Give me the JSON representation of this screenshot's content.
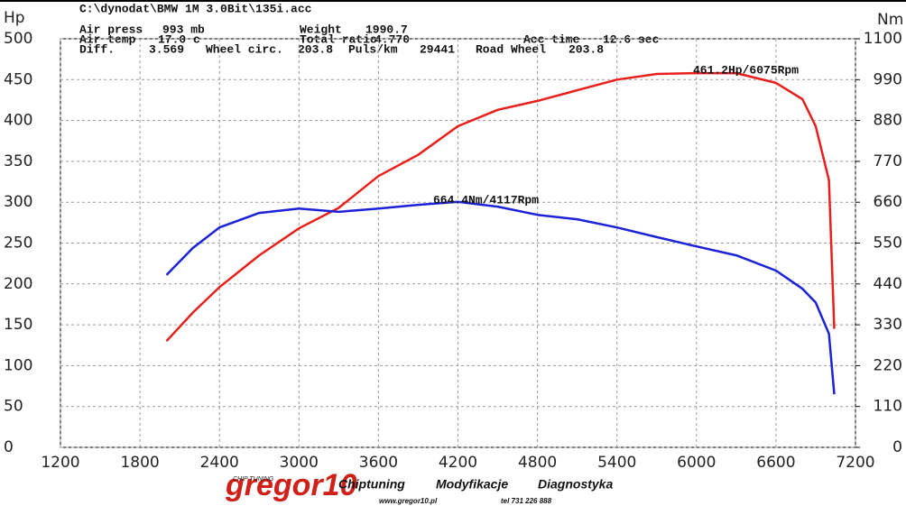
{
  "header": {
    "file": "C:\\dynodat\\BMW 1M 3.0Bit\\135i.acc",
    "fields": [
      {
        "label": "Air press",
        "value": "993 mb"
      },
      {
        "label": "Weight",
        "value": "1990.7"
      },
      {
        "label": "Air temp",
        "value": "17.0 c"
      },
      {
        "label": "Total ratio",
        "value": "4.770"
      },
      {
        "label": "Acc time",
        "value": "12.6 sec"
      },
      {
        "label": "Diff.",
        "value": "3.569"
      },
      {
        "label": "Wheel circ.",
        "value": "203.8"
      },
      {
        "label": "Puls/km",
        "value": "29441"
      },
      {
        "label": "Road Wheel",
        "value": "203.8"
      }
    ]
  },
  "chart_data": {
    "type": "line",
    "ylabel": "Hp",
    "y2label": "Nm",
    "x": [
      2000,
      2200,
      2400,
      2700,
      3000,
      3300,
      3600,
      3900,
      4200,
      4500,
      4800,
      5100,
      5400,
      5700,
      6000,
      6300,
      6600,
      6800,
      6900,
      7000,
      7040
    ],
    "series": [
      {
        "name": "Hp",
        "color": "#e8201c",
        "axis": "y",
        "values": [
          130,
          165,
          196,
          235,
          268,
          293,
          332,
          358,
          393,
          413,
          424,
          437,
          450,
          457,
          458,
          458,
          446,
          426,
          393,
          327,
          145
        ]
      },
      {
        "name": "Nm",
        "color": "#1c22d6",
        "axis": "y2",
        "values": [
          464,
          537,
          592,
          631,
          643,
          634,
          643,
          653,
          661,
          648,
          626,
          614,
          592,
          566,
          541,
          517,
          476,
          427,
          390,
          306,
          143
        ]
      }
    ],
    "annotations": [
      "461.2Hp/6075Rpm",
      "664.4Nm/4117Rpm"
    ],
    "xlim": [
      1200,
      7200
    ],
    "xticks": [
      1200,
      1800,
      2400,
      3000,
      3600,
      4200,
      4800,
      5400,
      6000,
      6600,
      7200
    ],
    "ylim": [
      0,
      500
    ],
    "yticks": [
      0,
      50,
      100,
      150,
      200,
      250,
      300,
      350,
      400,
      450,
      500
    ],
    "y2lim": [
      0,
      1100
    ],
    "y2ticks": [
      0,
      110,
      220,
      330,
      440,
      550,
      660,
      770,
      880,
      990,
      1100
    ],
    "grid": true
  },
  "footer": {
    "logo": "gregor10",
    "logo_sub": "CHIP TUNING",
    "services": [
      "Chiptuning",
      "Modyfikacje",
      "Diagnostyka"
    ],
    "web": "www.gregor10.pl",
    "phone": "tel 731 226 888"
  }
}
